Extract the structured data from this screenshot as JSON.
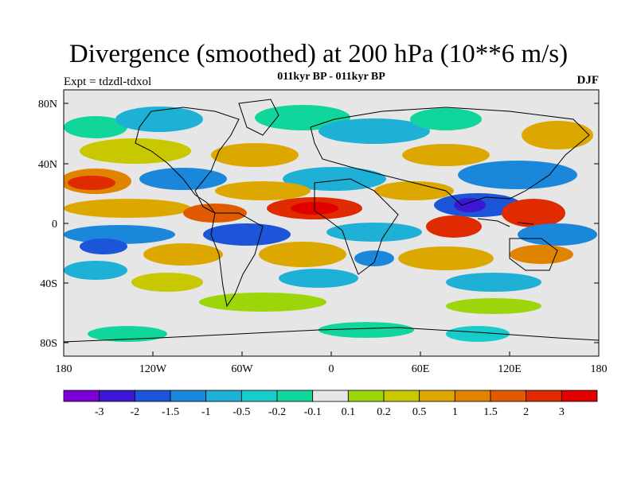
{
  "title": "Divergence (smoothed) at 200 hPa (10**6 m/s)",
  "experiment": "Expt = tdzdl-tdxol",
  "subtitle": "011kyr BP - 011kyr BP",
  "season": "DJF",
  "axes": {
    "lat_ticks": [
      "80N",
      "40N",
      "0",
      "40S",
      "80S"
    ],
    "lon_ticks": [
      "180",
      "120W",
      "60W",
      "0",
      "60E",
      "120E",
      "180"
    ]
  },
  "colorbar": {
    "labels": [
      "-3",
      "-2",
      "-1.5",
      "-1",
      "-0.5",
      "-0.2",
      "-0.1",
      "0.1",
      "0.2",
      "0.5",
      "1",
      "1.5",
      "2",
      "3"
    ],
    "colors": [
      "#7a00d6",
      "#3c18d4",
      "#1d55d8",
      "#1b87da",
      "#1fb0d6",
      "#18cccc",
      "#10d69c",
      "#e6e6e6",
      "#9cd60a",
      "#c8c800",
      "#dca800",
      "#e08400",
      "#e05a00",
      "#e02a00",
      "#e00000"
    ]
  },
  "map_features": {
    "coastline-color": "#000000",
    "background-color": "#e6e6e6"
  }
}
